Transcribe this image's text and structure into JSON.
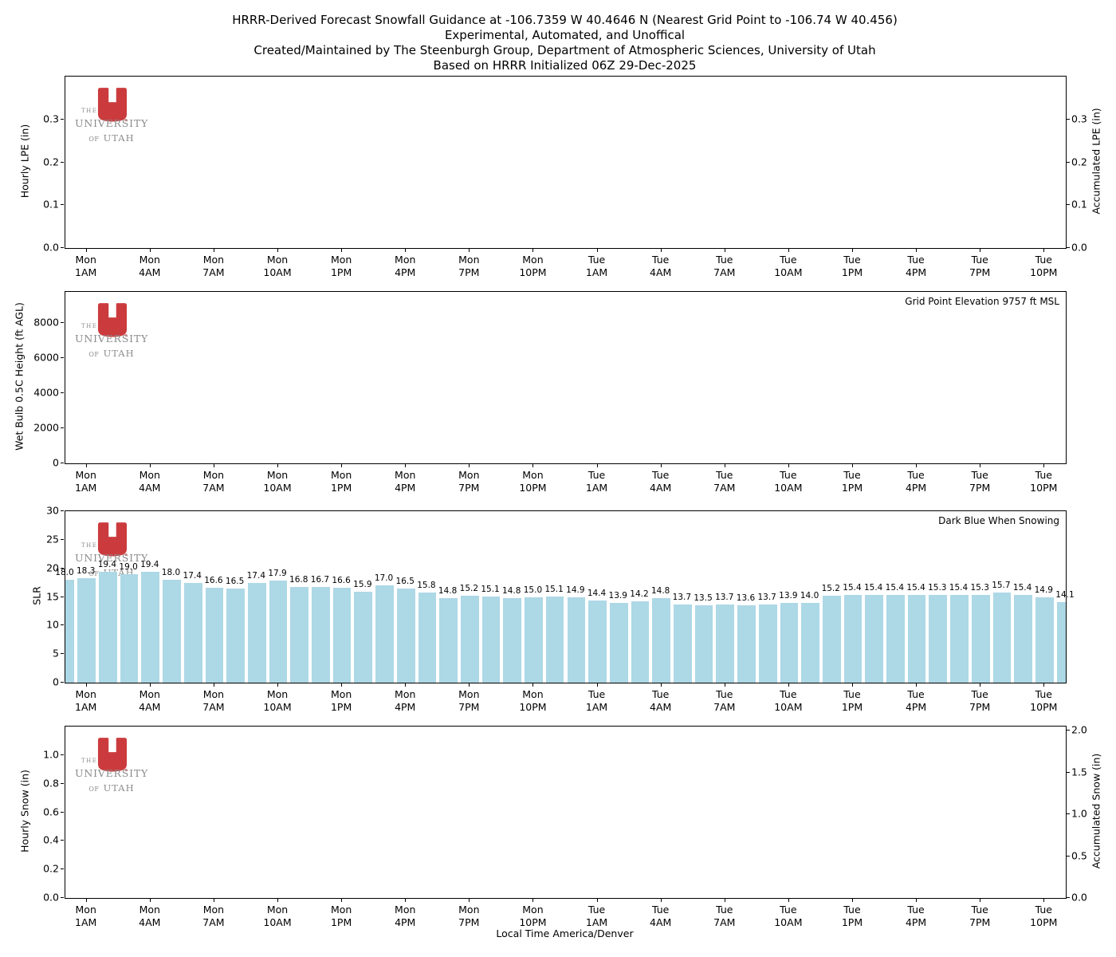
{
  "title": {
    "line1": "HRRR-Derived Forecast Snowfall Guidance at -106.7359 W 40.4646 N (Nearest Grid Point to -106.74 W 40.456)",
    "line2": "Experimental, Automated, and Unoffical",
    "line3": "Created/Maintained by The Steenburgh Group, Department of Atmospheric Sciences, University of Utah",
    "line4": "Based on HRRR Initialized 06Z 29-Dec-2025"
  },
  "logo": {
    "the": "THE",
    "university": "UNIVERSITY",
    "of": "OF",
    "utah": "UTAH"
  },
  "colors": {
    "bar_fill": "#ADD8E6",
    "logo_red": "#CB3B3D",
    "axis": "#000000",
    "logo_gray": "#8b8b8b"
  },
  "xaxis": {
    "label": "Local Time America/Denver",
    "n_slots": 48,
    "ticks": [
      {
        "i": 1,
        "day": "Mon",
        "time": "1AM"
      },
      {
        "i": 4,
        "day": "Mon",
        "time": "4AM"
      },
      {
        "i": 7,
        "day": "Mon",
        "time": "7AM"
      },
      {
        "i": 10,
        "day": "Mon",
        "time": "10AM"
      },
      {
        "i": 13,
        "day": "Mon",
        "time": "1PM"
      },
      {
        "i": 16,
        "day": "Mon",
        "time": "4PM"
      },
      {
        "i": 19,
        "day": "Mon",
        "time": "7PM"
      },
      {
        "i": 22,
        "day": "Mon",
        "time": "10PM"
      },
      {
        "i": 25,
        "day": "Tue",
        "time": "1AM"
      },
      {
        "i": 28,
        "day": "Tue",
        "time": "4AM"
      },
      {
        "i": 31,
        "day": "Tue",
        "time": "7AM"
      },
      {
        "i": 34,
        "day": "Tue",
        "time": "10AM"
      },
      {
        "i": 37,
        "day": "Tue",
        "time": "1PM"
      },
      {
        "i": 40,
        "day": "Tue",
        "time": "4PM"
      },
      {
        "i": 43,
        "day": "Tue",
        "time": "7PM"
      },
      {
        "i": 46,
        "day": "Tue",
        "time": "10PM"
      }
    ]
  },
  "panels": [
    {
      "key": "hourly_lpe",
      "ylabel_left": "Hourly LPE (in)",
      "ylabel_right": "Accumulated LPE (in)",
      "yticks_left": {
        "labels": [
          "0.0",
          "0.1",
          "0.2",
          "0.3"
        ],
        "values": [
          0,
          0.1,
          0.2,
          0.3
        ],
        "max": 0.4
      },
      "yticks_right": {
        "labels": [
          "0.0",
          "0.1",
          "0.2",
          "0.3"
        ],
        "values": [
          0,
          0.1,
          0.2,
          0.3
        ],
        "max": 0.4
      }
    },
    {
      "key": "wet_bulb_height",
      "ylabel_left": "Wet Bulb 0.5C Height (ft AGL)",
      "annotation": "Grid Point Elevation 9757 ft MSL",
      "yticks_left": {
        "labels": [
          "0",
          "2000",
          "4000",
          "6000",
          "8000"
        ],
        "values": [
          0,
          2000,
          4000,
          6000,
          8000
        ],
        "max": 9757
      }
    },
    {
      "key": "slr",
      "ylabel_left": "SLR",
      "annotation": "Dark Blue When Snowing",
      "yticks_left": {
        "labels": [
          "0",
          "5",
          "10",
          "15",
          "20",
          "25",
          "30"
        ],
        "values": [
          0,
          5,
          10,
          15,
          20,
          25,
          30
        ],
        "max": 30
      }
    },
    {
      "key": "hourly_snow",
      "ylabel_left": "Hourly Snow (in)",
      "ylabel_right": "Accumulated Snow (in)",
      "yticks_left": {
        "labels": [
          "0.0",
          "0.2",
          "0.4",
          "0.6",
          "0.8",
          "1.0"
        ],
        "values": [
          0,
          0.2,
          0.4,
          0.6,
          0.8,
          1.0
        ],
        "max": 1.2
      },
      "yticks_right": {
        "labels": [
          "0.0",
          "0.5",
          "1.0",
          "1.5",
          "2.0"
        ],
        "values": [
          0,
          0.5,
          1.0,
          1.5,
          2.0
        ],
        "max": 2.05
      }
    }
  ],
  "chart_data": [
    {
      "panel": "hourly_lpe",
      "type": "bar",
      "ylabel": "Hourly LPE (in)",
      "ylabel_right": "Accumulated LPE (in)",
      "ylim": [
        0,
        0.4
      ],
      "ylim_right": [
        0,
        0.4
      ],
      "values": [],
      "grid": false,
      "note_visible_data": "no bars or lines plotted (zero/no precipitation)"
    },
    {
      "panel": "wet_bulb_height",
      "type": "bar",
      "ylabel": "Wet Bulb 0.5C Height (ft AGL)",
      "ylim": [
        0,
        9757
      ],
      "values": [],
      "grid": false,
      "annotation": "Grid Point Elevation 9757 ft MSL",
      "note_visible_data": "no data plotted"
    },
    {
      "panel": "slr",
      "type": "bar",
      "ylabel": "SLR",
      "ylim": [
        0,
        30
      ],
      "n_bars": 48,
      "bar_color": "#ADD8E6",
      "annotation": "Dark Blue When Snowing",
      "data_labels": true,
      "x_start_slot": "Mon 12AM",
      "values": [
        18.0,
        18.3,
        19.4,
        19.0,
        19.4,
        18.0,
        17.4,
        16.6,
        16.5,
        17.4,
        17.9,
        16.8,
        16.7,
        16.6,
        15.9,
        17.0,
        16.5,
        15.8,
        14.8,
        15.2,
        15.1,
        14.8,
        15.0,
        15.1,
        14.9,
        14.4,
        13.9,
        14.2,
        14.8,
        13.7,
        13.5,
        13.7,
        13.6,
        13.7,
        13.9,
        14.0,
        15.2,
        15.4,
        15.4,
        15.4,
        15.4,
        15.3,
        15.4,
        15.3,
        15.7,
        15.4,
        14.9,
        14.1
      ],
      "grid": false
    },
    {
      "panel": "hourly_snow",
      "type": "bar",
      "ylabel": "Hourly Snow (in)",
      "ylabel_right": "Accumulated Snow (in)",
      "ylim": [
        0,
        1.2
      ],
      "ylim_right": [
        0,
        2.05
      ],
      "values": [],
      "grid": false,
      "note_visible_data": "no bars or lines plotted (zero/no snowfall)"
    }
  ]
}
